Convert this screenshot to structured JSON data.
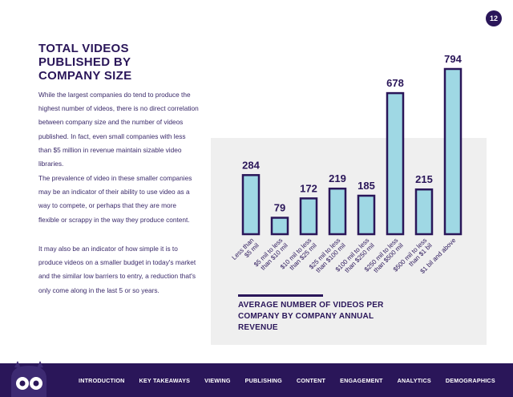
{
  "page_number": "12",
  "title": "TOTAL VIDEOS PUBLISHED BY COMPANY SIZE",
  "paragraphs": [
    "While the largest companies do tend to produce the highest number of videos, there is no direct correlation between company size and the number of videos published. In fact, even small companies with less than $5 million in revenue maintain sizable video libraries.",
    "The prevalence of video in these smaller companies may be an indicator of their ability to use video as a way to compete, or perhaps that they are more flexible or scrappy in the way they produce content.",
    "It may also be an indicator of how simple it is to produce videos on a smaller budget in today's market and the similar low barriers to entry, a reduction that's only come along in the last 5 or so years."
  ],
  "chart_caption": "AVERAGE NUMBER OF VIDEOS PER COMPANY BY COMPANY ANNUAL REVENUE",
  "colors": {
    "bar_fill": "#9fd8e4",
    "bar_stroke": "#2a1659",
    "panel": "#efefef",
    "text": "#2a1659"
  },
  "chart_data": {
    "type": "bar",
    "categories": [
      [
        "Less than",
        "$5 mil"
      ],
      [
        "$5 mil to less",
        "than $10 mil"
      ],
      [
        "$10 mil to less",
        "than $25 mil"
      ],
      [
        "$25 mil to less",
        "than $100 mil"
      ],
      [
        "$100 mil to less",
        "than $250 mil"
      ],
      [
        "$250 mil to less",
        "than $500 mil"
      ],
      [
        "$500 mil to less",
        "than $1 bil"
      ],
      [
        "$1 bil and above"
      ]
    ],
    "values": [
      284,
      79,
      172,
      219,
      185,
      678,
      215,
      794
    ],
    "title": "AVERAGE NUMBER OF VIDEOS PER COMPANY BY COMPANY ANNUAL REVENUE",
    "xlabel": "",
    "ylabel": "",
    "ylim": [
      0,
      794
    ],
    "grid": false,
    "legend": "none"
  },
  "nav": {
    "items": [
      "INTRODUCTION",
      "KEY TAKEAWAYS",
      "VIEWING",
      "PUBLISHING",
      "CONTENT",
      "ENGAGEMENT",
      "ANALYTICS",
      "DEMOGRAPHICS"
    ]
  }
}
